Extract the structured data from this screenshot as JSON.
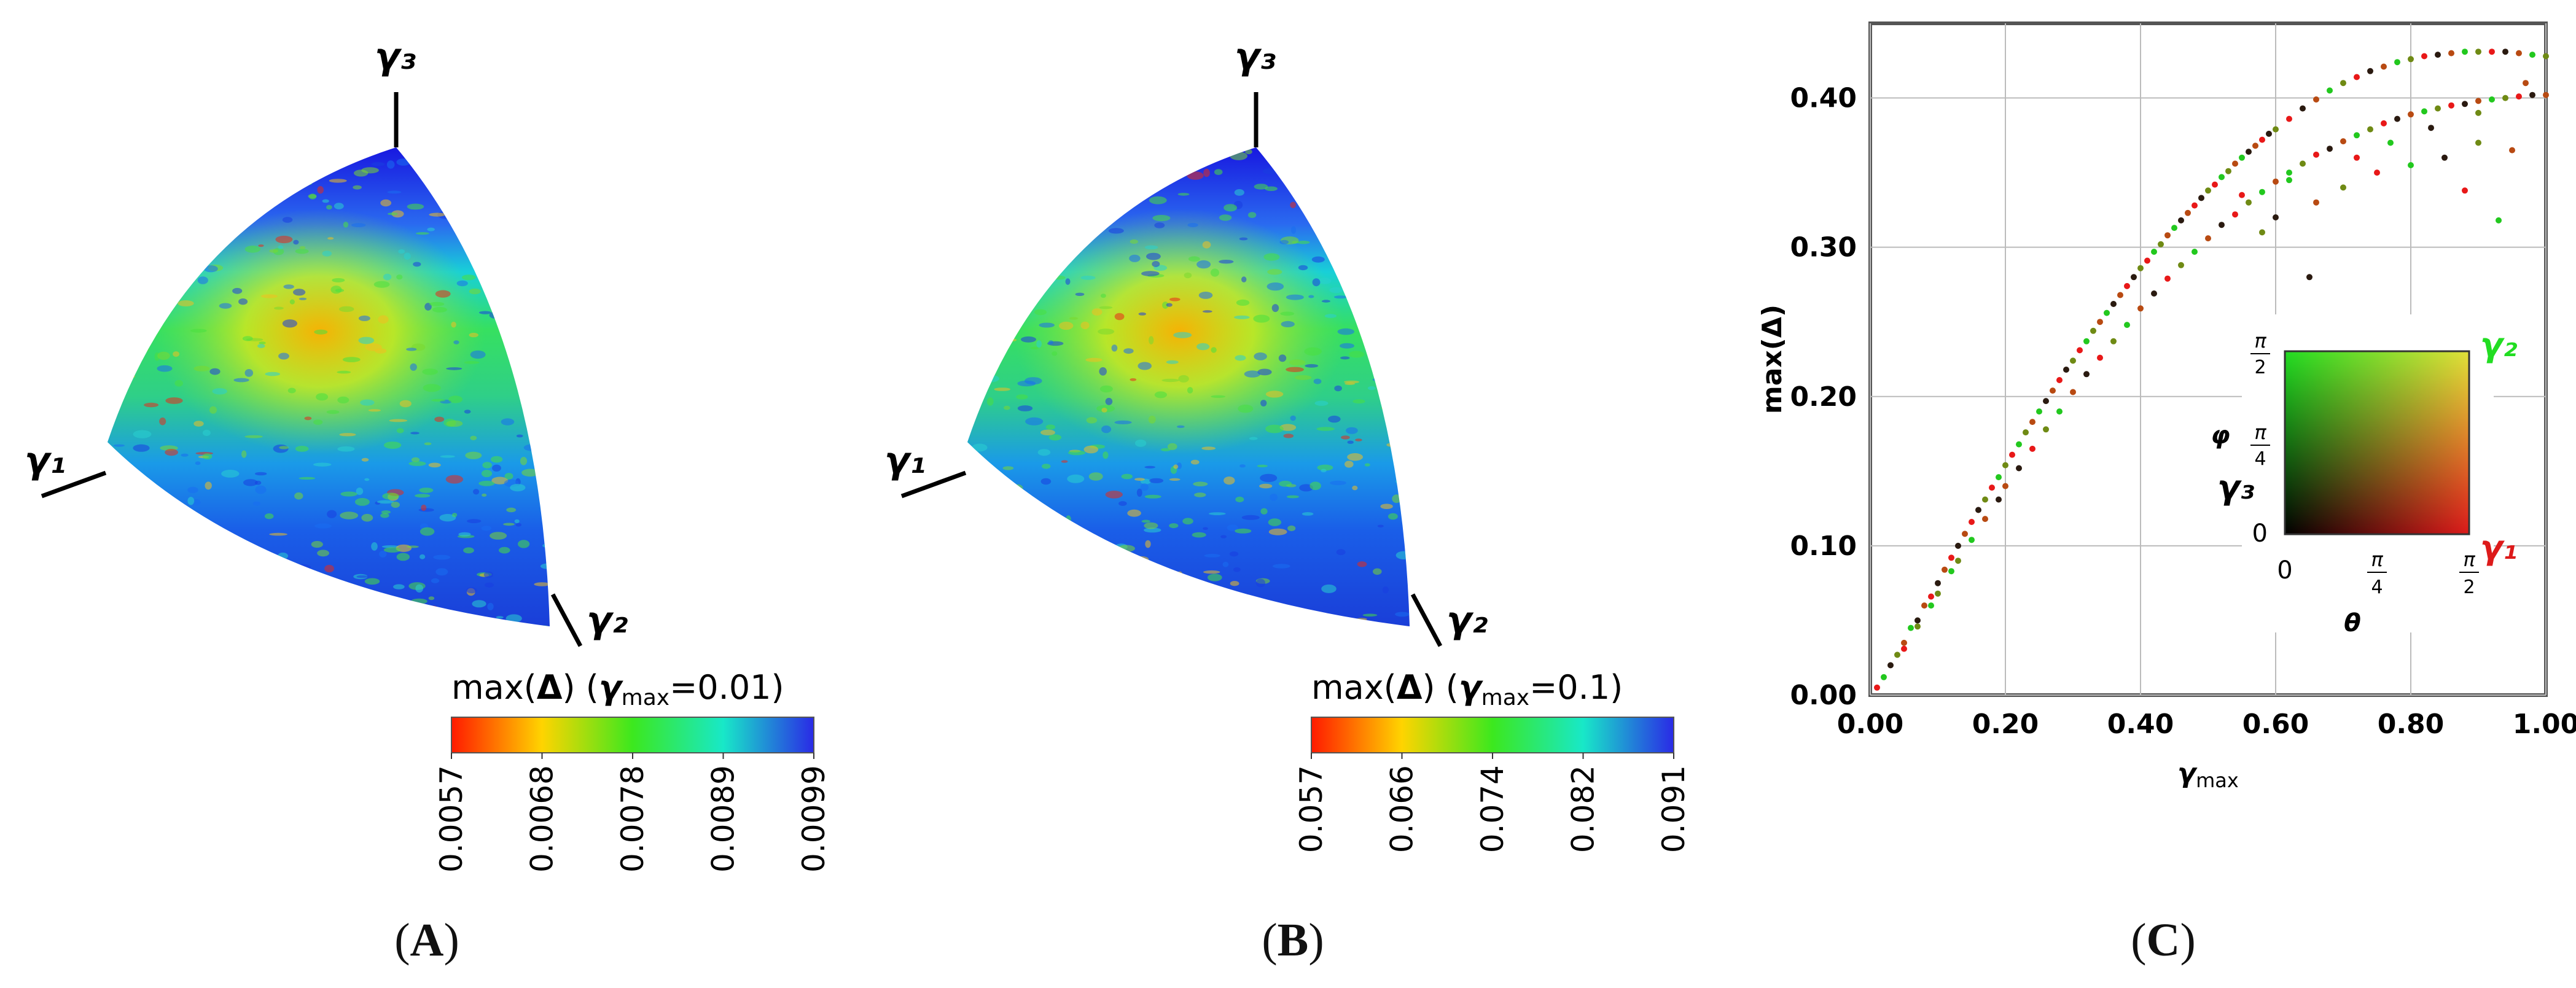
{
  "panels": [
    {
      "id": "A",
      "caption_letter": "A",
      "axis_labels": {
        "g1": "γ₁",
        "g2": "γ₂",
        "g3": "γ₃"
      },
      "colorbar": {
        "title_prefix": "max(",
        "title_delta": "Δ",
        "title_mid": ") (",
        "title_gamma": "γ",
        "title_sub": "max",
        "title_suffix": "=0.01)",
        "ticks": [
          "0.0057",
          "0.0068",
          "0.0078",
          "0.0089",
          "0.0099"
        ],
        "colors": [
          "#ff1a00",
          "#ffd400",
          "#3ce81e",
          "#18e8c8",
          "#2a2ae6"
        ]
      }
    },
    {
      "id": "B",
      "caption_letter": "B",
      "axis_labels": {
        "g1": "γ₁",
        "g2": "γ₂",
        "g3": "γ₃"
      },
      "colorbar": {
        "title_prefix": "max(",
        "title_delta": "Δ",
        "title_mid": ") (",
        "title_gamma": "γ",
        "title_sub": "max",
        "title_suffix": "=0.1)",
        "ticks": [
          "0.057",
          "0.066",
          "0.074",
          "0.082",
          "0.091"
        ],
        "colors": [
          "#ff1a00",
          "#ffd400",
          "#3ce81e",
          "#18e8c8",
          "#2a2ae6"
        ]
      }
    }
  ],
  "chart_data": {
    "type": "scatter",
    "caption_letter": "C",
    "xlabel": "γmax",
    "xlabel_base": "γ",
    "xlabel_sub": "max",
    "ylabel": "max(Δ)",
    "xlim": [
      0.0,
      1.0
    ],
    "ylim": [
      0.0,
      0.45
    ],
    "x_ticks": [
      "0.00",
      "0.20",
      "0.40",
      "0.60",
      "0.80",
      "1.00"
    ],
    "x_tick_values": [
      0.0,
      0.2,
      0.4,
      0.6,
      0.8,
      1.0
    ],
    "y_ticks": [
      "0.00",
      "0.10",
      "0.20",
      "0.30",
      "0.40"
    ],
    "y_tick_values": [
      0.0,
      0.1,
      0.2,
      0.3,
      0.4
    ],
    "grid": true,
    "point_colors": [
      "#e81818",
      "#22c81e",
      "#2a1a10",
      "#6f8a14",
      "#b84a12"
    ],
    "points": [
      [
        0.01,
        0.005
      ],
      [
        0.02,
        0.012
      ],
      [
        0.03,
        0.02
      ],
      [
        0.04,
        0.027
      ],
      [
        0.05,
        0.035
      ],
      [
        0.05,
        0.031
      ],
      [
        0.06,
        0.045
      ],
      [
        0.07,
        0.05
      ],
      [
        0.07,
        0.046
      ],
      [
        0.08,
        0.06
      ],
      [
        0.09,
        0.066
      ],
      [
        0.09,
        0.06
      ],
      [
        0.1,
        0.075
      ],
      [
        0.1,
        0.068
      ],
      [
        0.11,
        0.084
      ],
      [
        0.12,
        0.092
      ],
      [
        0.12,
        0.083
      ],
      [
        0.13,
        0.1
      ],
      [
        0.13,
        0.09
      ],
      [
        0.14,
        0.108
      ],
      [
        0.15,
        0.116
      ],
      [
        0.15,
        0.104
      ],
      [
        0.16,
        0.124
      ],
      [
        0.17,
        0.131
      ],
      [
        0.17,
        0.118
      ],
      [
        0.18,
        0.139
      ],
      [
        0.19,
        0.146
      ],
      [
        0.19,
        0.131
      ],
      [
        0.2,
        0.154
      ],
      [
        0.2,
        0.14
      ],
      [
        0.21,
        0.161
      ],
      [
        0.22,
        0.168
      ],
      [
        0.22,
        0.152
      ],
      [
        0.23,
        0.176
      ],
      [
        0.24,
        0.183
      ],
      [
        0.24,
        0.165
      ],
      [
        0.25,
        0.19
      ],
      [
        0.26,
        0.197
      ],
      [
        0.26,
        0.178
      ],
      [
        0.27,
        0.204
      ],
      [
        0.28,
        0.211
      ],
      [
        0.28,
        0.19
      ],
      [
        0.29,
        0.218
      ],
      [
        0.3,
        0.224
      ],
      [
        0.3,
        0.203
      ],
      [
        0.31,
        0.231
      ],
      [
        0.32,
        0.237
      ],
      [
        0.32,
        0.215
      ],
      [
        0.33,
        0.244
      ],
      [
        0.34,
        0.25
      ],
      [
        0.34,
        0.226
      ],
      [
        0.35,
        0.256
      ],
      [
        0.36,
        0.262
      ],
      [
        0.36,
        0.237
      ],
      [
        0.37,
        0.268
      ],
      [
        0.38,
        0.274
      ],
      [
        0.38,
        0.248
      ],
      [
        0.39,
        0.28
      ],
      [
        0.4,
        0.286
      ],
      [
        0.4,
        0.259
      ],
      [
        0.41,
        0.291
      ],
      [
        0.42,
        0.297
      ],
      [
        0.42,
        0.269
      ],
      [
        0.43,
        0.302
      ],
      [
        0.44,
        0.308
      ],
      [
        0.44,
        0.279
      ],
      [
        0.45,
        0.313
      ],
      [
        0.46,
        0.318
      ],
      [
        0.46,
        0.288
      ],
      [
        0.47,
        0.323
      ],
      [
        0.48,
        0.328
      ],
      [
        0.48,
        0.297
      ],
      [
        0.49,
        0.333
      ],
      [
        0.5,
        0.338
      ],
      [
        0.5,
        0.306
      ],
      [
        0.51,
        0.342
      ],
      [
        0.52,
        0.347
      ],
      [
        0.52,
        0.315
      ],
      [
        0.53,
        0.351
      ],
      [
        0.54,
        0.356
      ],
      [
        0.54,
        0.322
      ],
      [
        0.55,
        0.36
      ],
      [
        0.56,
        0.364
      ],
      [
        0.56,
        0.33
      ],
      [
        0.57,
        0.368
      ],
      [
        0.58,
        0.372
      ],
      [
        0.58,
        0.337
      ],
      [
        0.59,
        0.376
      ],
      [
        0.6,
        0.379
      ],
      [
        0.6,
        0.344
      ],
      [
        0.62,
        0.386
      ],
      [
        0.62,
        0.35
      ],
      [
        0.64,
        0.393
      ],
      [
        0.64,
        0.356
      ],
      [
        0.66,
        0.399
      ],
      [
        0.66,
        0.362
      ],
      [
        0.68,
        0.405
      ],
      [
        0.68,
        0.366
      ],
      [
        0.7,
        0.41
      ],
      [
        0.7,
        0.371
      ],
      [
        0.72,
        0.414
      ],
      [
        0.72,
        0.375
      ],
      [
        0.74,
        0.418
      ],
      [
        0.74,
        0.379
      ],
      [
        0.76,
        0.421
      ],
      [
        0.76,
        0.383
      ],
      [
        0.78,
        0.424
      ],
      [
        0.78,
        0.386
      ],
      [
        0.8,
        0.426
      ],
      [
        0.8,
        0.389
      ],
      [
        0.82,
        0.428
      ],
      [
        0.82,
        0.391
      ],
      [
        0.84,
        0.429
      ],
      [
        0.84,
        0.393
      ],
      [
        0.86,
        0.43
      ],
      [
        0.86,
        0.395
      ],
      [
        0.88,
        0.431
      ],
      [
        0.88,
        0.396
      ],
      [
        0.9,
        0.431
      ],
      [
        0.9,
        0.398
      ],
      [
        0.92,
        0.431
      ],
      [
        0.92,
        0.399
      ],
      [
        0.94,
        0.431
      ],
      [
        0.94,
        0.4
      ],
      [
        0.96,
        0.43
      ],
      [
        0.96,
        0.401
      ],
      [
        0.98,
        0.429
      ],
      [
        0.98,
        0.402
      ],
      [
        1.0,
        0.428
      ],
      [
        1.0,
        0.402
      ],
      [
        0.55,
        0.335
      ],
      [
        0.62,
        0.345
      ],
      [
        0.65,
        0.28
      ],
      [
        0.7,
        0.34
      ],
      [
        0.71,
        0.25
      ],
      [
        0.75,
        0.35
      ],
      [
        0.8,
        0.355
      ],
      [
        0.85,
        0.36
      ],
      [
        0.9,
        0.37
      ],
      [
        0.95,
        0.365
      ],
      [
        0.88,
        0.338
      ],
      [
        0.93,
        0.318
      ],
      [
        0.6,
        0.32
      ],
      [
        0.58,
        0.31
      ],
      [
        0.66,
        0.33
      ],
      [
        0.72,
        0.36
      ],
      [
        0.77,
        0.37
      ],
      [
        0.83,
        0.38
      ],
      [
        0.9,
        0.39
      ],
      [
        0.97,
        0.41
      ]
    ],
    "inset": {
      "xlabel": "θ",
      "ylabel": "φ",
      "x_ticks": [
        "0",
        "π/4",
        "π/2"
      ],
      "y_ticks": [
        "0",
        "π/4",
        "π/2"
      ],
      "corner_label_top_right": "γ₂",
      "corner_label_bottom_right": "γ₁",
      "corner_label_left": "γ₃",
      "corner_colors": {
        "top_right": "#22dd22",
        "bottom_right": "#dd1a1a",
        "left": "#000000"
      }
    }
  }
}
